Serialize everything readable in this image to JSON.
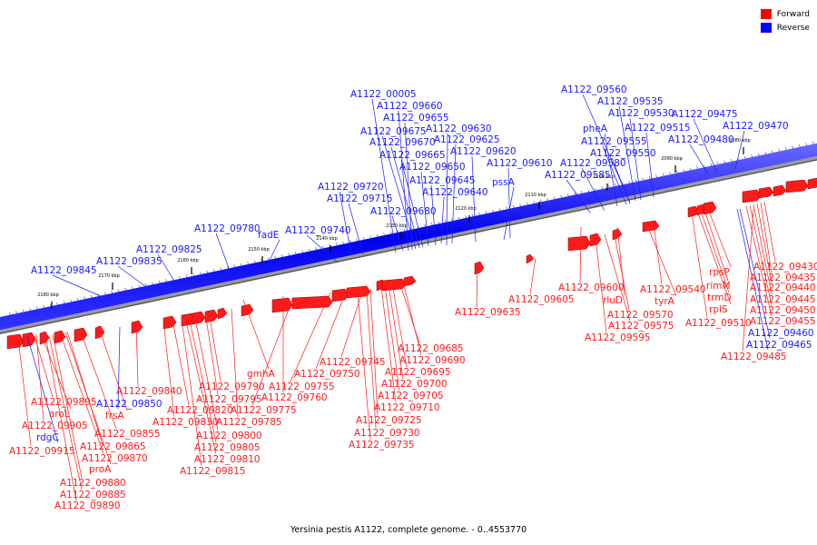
{
  "colors": {
    "forward": "#ff1a1a",
    "reverse": "#1a1aff"
  },
  "legend": [
    {
      "label": "Forward",
      "color": "#ff0000"
    },
    {
      "label": "Reverse",
      "color": "#0000ff"
    }
  ],
  "caption": "Yersinia pestis A1122, complete genome. - 0..4553770",
  "ticks": [
    "2180 kbp",
    "2170 kbp",
    "2160 kbp",
    "2150 kbp",
    "2140 kbp",
    "2130 kbp",
    "2120 kbp",
    "2110 kbp",
    "2100 kbp",
    "2090 kbp",
    "2080 kbp"
  ],
  "labels": [
    {
      "text": "A1122_00005",
      "strand": "reverse"
    },
    {
      "text": "A1122_09660",
      "strand": "reverse"
    },
    {
      "text": "A1122_09655",
      "strand": "reverse"
    },
    {
      "text": "A1122_09675",
      "strand": "reverse"
    },
    {
      "text": "A1122_09630",
      "strand": "reverse"
    },
    {
      "text": "A1122_09670",
      "strand": "reverse"
    },
    {
      "text": "A1122_09625",
      "strand": "reverse"
    },
    {
      "text": "A1122_09665",
      "strand": "reverse"
    },
    {
      "text": "A1122_09620",
      "strand": "reverse"
    },
    {
      "text": "A1122_09650",
      "strand": "reverse"
    },
    {
      "text": "A1122_09610",
      "strand": "reverse"
    },
    {
      "text": "A1122_09645",
      "strand": "reverse"
    },
    {
      "text": "pssA",
      "strand": "reverse"
    },
    {
      "text": "A1122_09640",
      "strand": "reverse"
    },
    {
      "text": "A1122_09720",
      "strand": "reverse"
    },
    {
      "text": "A1122_09715",
      "strand": "reverse"
    },
    {
      "text": "A1122_09680",
      "strand": "reverse"
    },
    {
      "text": "A1122_09780",
      "strand": "reverse"
    },
    {
      "text": "fadE",
      "strand": "reverse"
    },
    {
      "text": "A1122_09740",
      "strand": "reverse"
    },
    {
      "text": "A1122_09825",
      "strand": "reverse"
    },
    {
      "text": "A1122_09835",
      "strand": "reverse"
    },
    {
      "text": "A1122_09845",
      "strand": "reverse"
    },
    {
      "text": "A1122_09560",
      "strand": "reverse"
    },
    {
      "text": "A1122_09535",
      "strand": "reverse"
    },
    {
      "text": "A1122_09530",
      "strand": "reverse"
    },
    {
      "text": "A1122_09475",
      "strand": "reverse"
    },
    {
      "text": "pheA",
      "strand": "reverse"
    },
    {
      "text": "A1122_09515",
      "strand": "reverse"
    },
    {
      "text": "A1122_09470",
      "strand": "reverse"
    },
    {
      "text": "A1122_09555",
      "strand": "reverse"
    },
    {
      "text": "A1122_09480",
      "strand": "reverse"
    },
    {
      "text": "A1122_09550",
      "strand": "reverse"
    },
    {
      "text": "A1122_09580",
      "strand": "reverse"
    },
    {
      "text": "A1122_09585",
      "strand": "reverse"
    },
    {
      "text": "A1122_09430",
      "strand": "forward"
    },
    {
      "text": "A1122_09435",
      "strand": "forward"
    },
    {
      "text": "rpsP",
      "strand": "forward"
    },
    {
      "text": "A1122_09440",
      "strand": "forward"
    },
    {
      "text": "rimM",
      "strand": "forward"
    },
    {
      "text": "A1122_09445",
      "strand": "forward"
    },
    {
      "text": "A1122_09600",
      "strand": "forward"
    },
    {
      "text": "A1122_09540",
      "strand": "forward"
    },
    {
      "text": "trmD",
      "strand": "forward"
    },
    {
      "text": "A1122_09450",
      "strand": "forward"
    },
    {
      "text": "rluD",
      "strand": "forward"
    },
    {
      "text": "tyrA",
      "strand": "forward"
    },
    {
      "text": "rplS",
      "strand": "forward"
    },
    {
      "text": "A1122_09605",
      "strand": "forward"
    },
    {
      "text": "A1122_09455",
      "strand": "forward"
    },
    {
      "text": "A1122_09635",
      "strand": "forward"
    },
    {
      "text": "A1122_09570",
      "strand": "forward"
    },
    {
      "text": "A1122_09510",
      "strand": "forward"
    },
    {
      "text": "A1122_09460",
      "strand": "reverse"
    },
    {
      "text": "A1122_09575",
      "strand": "forward"
    },
    {
      "text": "A1122_09465",
      "strand": "reverse"
    },
    {
      "text": "A1122_09595",
      "strand": "forward"
    },
    {
      "text": "A1122_09485",
      "strand": "forward"
    },
    {
      "text": "A1122_09685",
      "strand": "forward"
    },
    {
      "text": "A1122_09745",
      "strand": "forward"
    },
    {
      "text": "A1122_09690",
      "strand": "forward"
    },
    {
      "text": "A1122_09750",
      "strand": "forward"
    },
    {
      "text": "gmhA",
      "strand": "forward"
    },
    {
      "text": "A1122_09695",
      "strand": "forward"
    },
    {
      "text": "A1122_09755",
      "strand": "forward"
    },
    {
      "text": "A1122_09700",
      "strand": "forward"
    },
    {
      "text": "A1122_09790",
      "strand": "forward"
    },
    {
      "text": "A1122_09840",
      "strand": "forward"
    },
    {
      "text": "A1122_09760",
      "strand": "forward"
    },
    {
      "text": "A1122_09705",
      "strand": "forward"
    },
    {
      "text": "A1122_09795",
      "strand": "forward"
    },
    {
      "text": "A1122_09895",
      "strand": "forward"
    },
    {
      "text": "A1122_09850",
      "strand": "reverse"
    },
    {
      "text": "A1122_09820",
      "strand": "forward"
    },
    {
      "text": "A1122_09775",
      "strand": "forward"
    },
    {
      "text": "A1122_09710",
      "strand": "forward"
    },
    {
      "text": "aroL",
      "strand": "forward"
    },
    {
      "text": "frsA",
      "strand": "forward"
    },
    {
      "text": "A1122_09830",
      "strand": "forward"
    },
    {
      "text": "A1122_09785",
      "strand": "forward"
    },
    {
      "text": "A1122_09725",
      "strand": "forward"
    },
    {
      "text": "A1122_09905",
      "strand": "forward"
    },
    {
      "text": "A1122_09855",
      "strand": "forward"
    },
    {
      "text": "A1122_09800",
      "strand": "forward"
    },
    {
      "text": "A1122_09730",
      "strand": "forward"
    },
    {
      "text": "rdgC",
      "strand": "reverse"
    },
    {
      "text": "A1122_09865",
      "strand": "forward"
    },
    {
      "text": "A1122_09805",
      "strand": "forward"
    },
    {
      "text": "A1122_09735",
      "strand": "forward"
    },
    {
      "text": "A1122_09915",
      "strand": "forward"
    },
    {
      "text": "A1122_09870",
      "strand": "forward"
    },
    {
      "text": "A1122_09810",
      "strand": "forward"
    },
    {
      "text": "proA",
      "strand": "forward"
    },
    {
      "text": "A1122_09815",
      "strand": "forward"
    },
    {
      "text": "A1122_09880",
      "strand": "forward"
    },
    {
      "text": "A1122_09885",
      "strand": "forward"
    },
    {
      "text": "A1122_09890",
      "strand": "forward"
    }
  ]
}
